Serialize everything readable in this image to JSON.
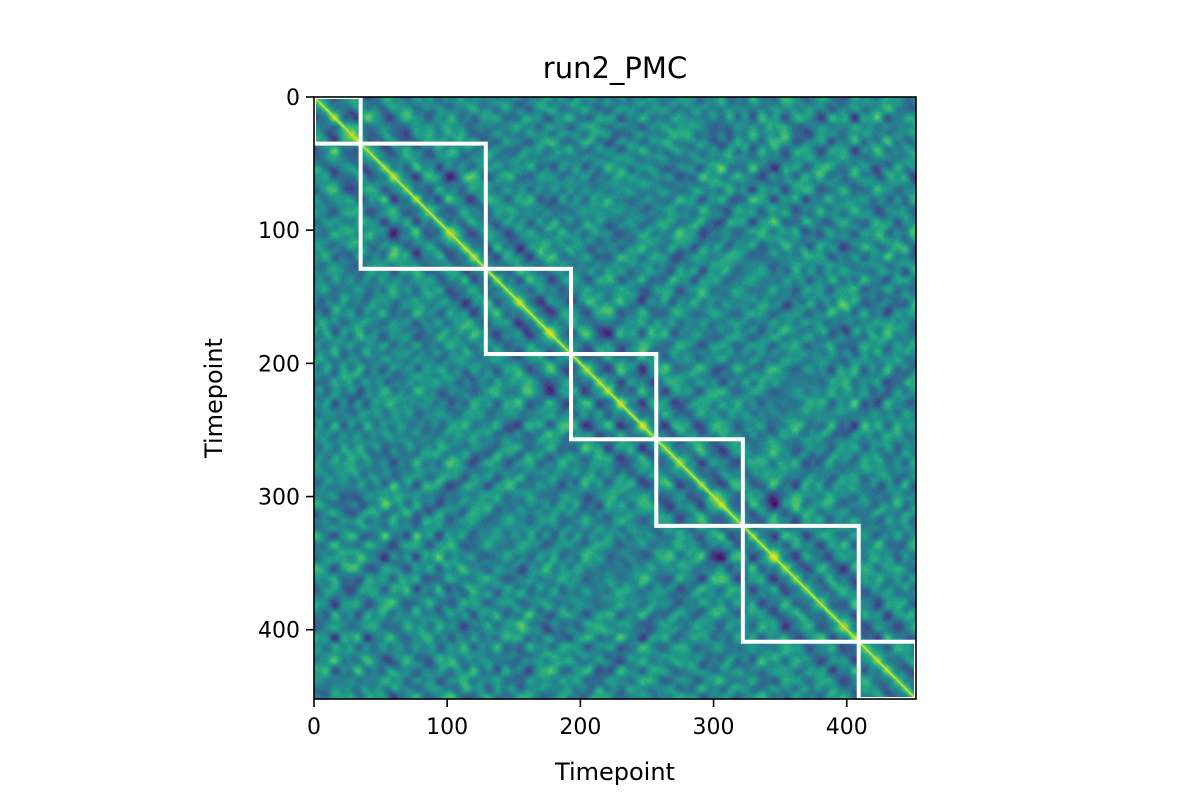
{
  "chart_data": {
    "type": "heatmap",
    "title": "run2_PMC",
    "xlabel": "Timepoint",
    "ylabel": "Timepoint",
    "n_timepoints": 452,
    "xlim": [
      0,
      452
    ],
    "ylim": [
      452,
      0
    ],
    "xticks": [
      0,
      100,
      200,
      300,
      400
    ],
    "yticks": [
      0,
      100,
      200,
      300,
      400
    ],
    "colormap": "viridis",
    "diagonal_value": 1.0,
    "event_boundaries": [
      0,
      35,
      129,
      193,
      257,
      322,
      409,
      452
    ],
    "boundary_color": "#ffffff"
  }
}
